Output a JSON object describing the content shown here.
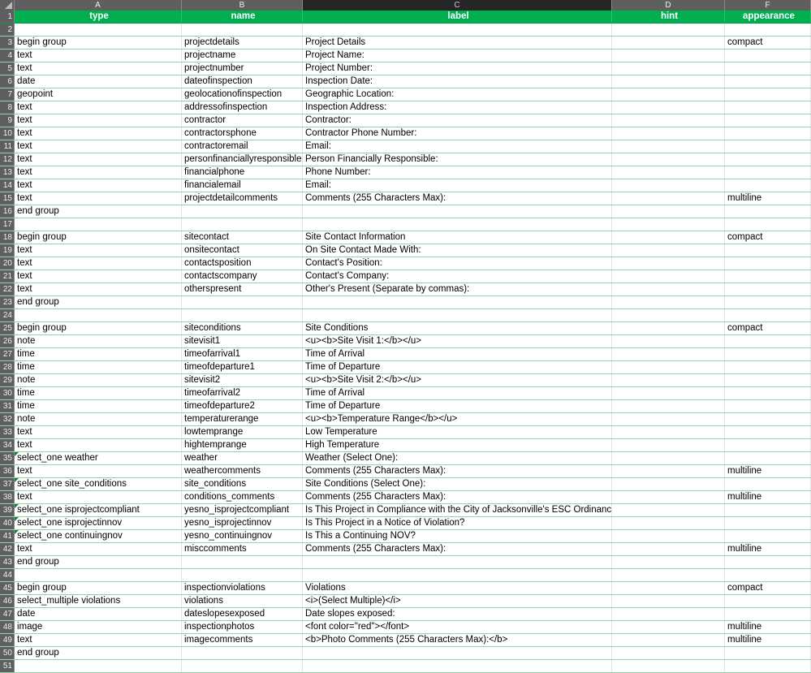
{
  "columns": [
    "A",
    "B",
    "C",
    "D",
    "F"
  ],
  "selected_column": "C",
  "header_color": "#00b050",
  "headers": [
    "type",
    "name",
    "label",
    "hint",
    "appearance"
  ],
  "rows": [
    [
      "",
      "",
      "",
      "",
      ""
    ],
    [
      "begin group",
      "projectdetails",
      "Project Details",
      "",
      "compact"
    ],
    [
      "text",
      "projectname",
      "Project Name:",
      "",
      ""
    ],
    [
      "text",
      "projectnumber",
      "Project Number:",
      "",
      ""
    ],
    [
      "date",
      "dateofinspection",
      "Inspection Date:",
      "",
      ""
    ],
    [
      "geopoint",
      "geolocationofinspection",
      "Geographic Location:",
      "",
      ""
    ],
    [
      "text",
      "addressofinspection",
      "Inspection Address:",
      "",
      ""
    ],
    [
      "text",
      "contractor",
      "Contractor:",
      "",
      ""
    ],
    [
      "text",
      "contractorsphone",
      "Contractor Phone Number:",
      "",
      ""
    ],
    [
      "text",
      "contractoremail",
      "Email:",
      "",
      ""
    ],
    [
      "text",
      "personfinanciallyresponsible",
      "Person Financially Responsible:",
      "",
      ""
    ],
    [
      "text",
      "financialphone",
      "Phone Number:",
      "",
      ""
    ],
    [
      "text",
      "financialemail",
      "Email:",
      "",
      ""
    ],
    [
      "text",
      "projectdetailcomments",
      "Comments (255 Characters Max):",
      "",
      "multiline"
    ],
    [
      "end group",
      "",
      "",
      "",
      ""
    ],
    [
      "",
      "",
      "",
      "",
      ""
    ],
    [
      "begin group",
      "sitecontact",
      "Site Contact Information",
      "",
      "compact"
    ],
    [
      "text",
      "onsitecontact",
      "On Site Contact Made With:",
      "",
      ""
    ],
    [
      "text",
      "contactsposition",
      "Contact's Position:",
      "",
      ""
    ],
    [
      "text",
      "contactscompany",
      "Contact's Company:",
      "",
      ""
    ],
    [
      "text",
      "otherspresent",
      "Other's Present (Separate by commas):",
      "",
      ""
    ],
    [
      "end group",
      "",
      "",
      "",
      ""
    ],
    [
      "",
      "",
      "",
      "",
      ""
    ],
    [
      "begin group",
      "siteconditions",
      "Site Conditions",
      "",
      "compact"
    ],
    [
      "note",
      "sitevisit1",
      "<u><b>Site Visit 1:</b></u>",
      "",
      ""
    ],
    [
      "time",
      "timeofarrival1",
      "Time of Arrival",
      "",
      ""
    ],
    [
      "time",
      "timeofdeparture1",
      "Time of Departure",
      "",
      ""
    ],
    [
      "note",
      "sitevisit2",
      "<u><b>Site Visit 2:</b></u>",
      "",
      ""
    ],
    [
      "time",
      "timeofarrival2",
      "Time of Arrival",
      "",
      ""
    ],
    [
      "time",
      "timeofdeparture2",
      "Time of Departure",
      "",
      ""
    ],
    [
      "note",
      "temperaturerange",
      "<u><b>Temperature Range</b></u>",
      "",
      ""
    ],
    [
      "text",
      "lowtemprange",
      "Low Temperature",
      "",
      ""
    ],
    [
      "text",
      "hightemprange",
      "High Temperature",
      "",
      ""
    ],
    [
      "select_one weather",
      "weather",
      "Weather (Select One):",
      "",
      ""
    ],
    [
      "text",
      "weathercomments",
      "Comments (255 Characters Max):",
      "",
      "multiline"
    ],
    [
      "select_one site_conditions",
      "site_conditions",
      "Site Conditions (Select One):",
      "",
      ""
    ],
    [
      "text",
      "conditions_comments",
      "Comments (255 Characters Max):",
      "",
      "multiline"
    ],
    [
      "select_one isprojectcompliant",
      "yesno_isprojectcompliant",
      "Is This Project in Compliance with the City of Jacksonville's ESC Ordinance?",
      "",
      ""
    ],
    [
      "select_one isprojectinnov",
      "yesno_isprojectinnov",
      "Is This Project in a Notice of Violation?",
      "",
      ""
    ],
    [
      "select_one continuingnov",
      "yesno_continuingnov",
      "Is This a Continuing NOV?",
      "",
      ""
    ],
    [
      "text",
      "misccomments",
      "Comments (255 Characters Max):",
      "",
      "multiline"
    ],
    [
      "end group",
      "",
      "",
      "",
      ""
    ],
    [
      "",
      "",
      "",
      "",
      ""
    ],
    [
      "begin group",
      "inspectionviolations",
      "Violations",
      "",
      "compact"
    ],
    [
      "select_multiple violations",
      "violations",
      "<i>(Select Multiple)</i>",
      "",
      ""
    ],
    [
      "date",
      "dateslopesexposed",
      "Date slopes exposed:",
      "",
      ""
    ],
    [
      "image",
      "inspectionphotos",
      "<font color=\"red\"></font>",
      "",
      "multiline"
    ],
    [
      "text",
      "imagecomments",
      "<b>Photo Comments (255 Characters Max):</b>",
      "",
      "multiline"
    ],
    [
      "end group",
      "",
      "",
      "",
      ""
    ],
    [
      "",
      "",
      "",
      "",
      ""
    ]
  ]
}
